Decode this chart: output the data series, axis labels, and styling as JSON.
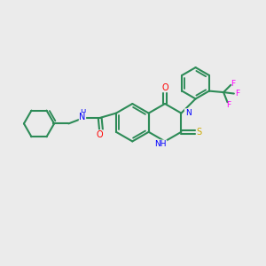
{
  "bg_color": "#ebebeb",
  "bond_color": "#2d8b57",
  "bond_width": 1.5,
  "atom_colors": {
    "N": "#0000ff",
    "O": "#ff0000",
    "S": "#ccaa00",
    "F": "#ff00ff",
    "C": "#2d8b57"
  }
}
